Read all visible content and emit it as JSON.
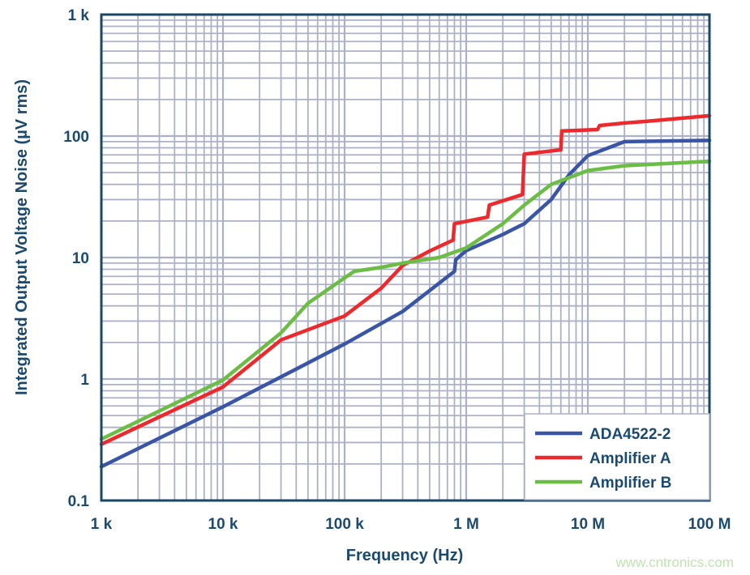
{
  "chart_data": {
    "type": "line",
    "title": "",
    "xlabel": "Frequency (Hz)",
    "ylabel": "Integrated Output Voltage Noise (µV rms)",
    "xscale": "log",
    "yscale": "log",
    "xlim": [
      1000,
      100000000
    ],
    "ylim": [
      0.1,
      1000
    ],
    "grid": true,
    "legend_position": "bottom-right",
    "x_tick_labels": [
      "1 k",
      "10 k",
      "100 k",
      "1 M",
      "10 M",
      "100 M"
    ],
    "x_ticks": [
      1000,
      10000,
      100000,
      1000000,
      10000000,
      100000000
    ],
    "y_tick_labels": [
      "0.1",
      "1",
      "10",
      "100",
      "1 k"
    ],
    "y_ticks": [
      0.1,
      1,
      10,
      100,
      1000
    ],
    "series": [
      {
        "name": "ADA4522-2",
        "color": "#3a55a6",
        "x": [
          1000,
          10000,
          100000,
          300000,
          800000,
          820000,
          1000000,
          2000000,
          3000000,
          5000000,
          7000000,
          10000000,
          20000000,
          100000000
        ],
        "y": [
          0.19,
          0.59,
          1.94,
          3.6,
          7.7,
          9.6,
          11.4,
          15.5,
          19,
          30,
          48,
          69,
          90,
          92
        ]
      },
      {
        "name": "Amplifier A",
        "color": "#ec2a2d",
        "x": [
          1000,
          10000,
          30000,
          100000,
          200000,
          300000,
          500000,
          780000,
          800000,
          1500000,
          1550000,
          2900000,
          3000000,
          6000000,
          6100000,
          12000000,
          12500000,
          20000000,
          30000000,
          100000000
        ],
        "y": [
          0.29,
          0.86,
          2.1,
          3.3,
          5.6,
          8.6,
          11.3,
          13.9,
          19,
          21.5,
          27,
          33,
          71,
          77,
          110,
          113,
          122,
          128,
          132,
          147
        ]
      },
      {
        "name": "Amplifier B",
        "color": "#6cbd45",
        "x": [
          1000,
          10000,
          30000,
          50000,
          100000,
          120000,
          200000,
          300000,
          600000,
          1000000,
          2000000,
          3000000,
          5000000,
          10000000,
          20000000,
          100000000
        ],
        "y": [
          0.32,
          0.98,
          2.4,
          4.2,
          6.8,
          7.7,
          8.3,
          9.0,
          10,
          12,
          19,
          27,
          40,
          52,
          57,
          62
        ]
      }
    ]
  },
  "watermark": "www.cntronics.com"
}
